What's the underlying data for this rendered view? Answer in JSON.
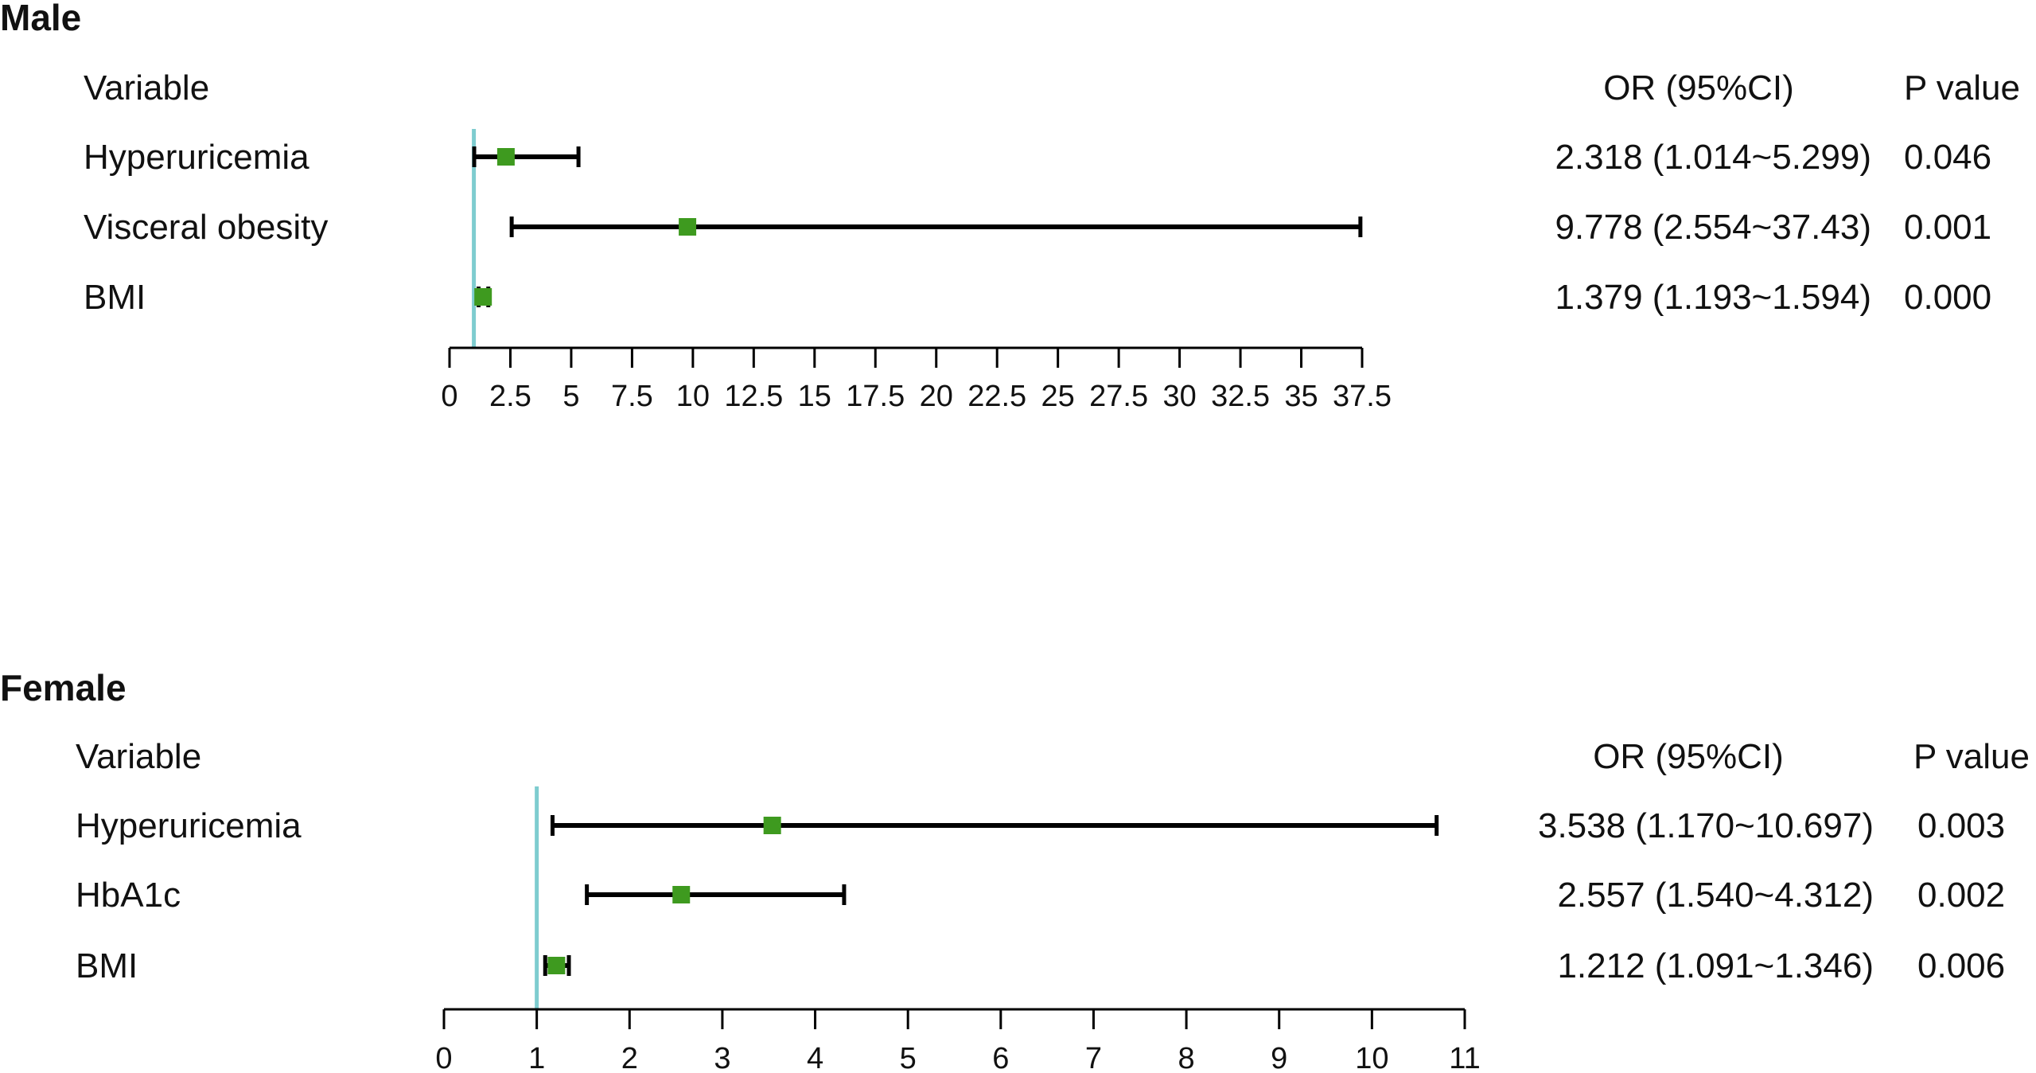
{
  "chart_data": [
    {
      "type": "forest",
      "title": "Male",
      "headers": {
        "variable": "Variable",
        "or": "OR (95%CI)",
        "p": "P value"
      },
      "reference_line": 1,
      "xlim": [
        0,
        37.5
      ],
      "ticks": [
        0,
        2.5,
        5,
        7.5,
        10,
        12.5,
        15,
        17.5,
        20,
        22.5,
        25,
        27.5,
        30,
        32.5,
        35,
        37.5
      ],
      "tick_labels": [
        "0",
        "2.5",
        "5",
        "7.5",
        "10",
        "12.5",
        "15",
        "17.5",
        "20",
        "22.5",
        "25",
        "27.5",
        "30",
        "32.5",
        "35",
        "37.5"
      ],
      "rows": [
        {
          "variable": "Hyperuricemia",
          "or": 2.318,
          "lower": 1.014,
          "upper": 5.299,
          "or_text": "2.318 (1.014~5.299)",
          "p": "0.046"
        },
        {
          "variable": "Visceral obesity",
          "or": 9.778,
          "lower": 2.554,
          "upper": 37.43,
          "or_text": "9.778 (2.554~37.43)",
          "p": "0.001"
        },
        {
          "variable": "BMI",
          "or": 1.379,
          "lower": 1.193,
          "upper": 1.594,
          "or_text": "1.379 (1.193~1.594)",
          "p": "0.000"
        }
      ]
    },
    {
      "type": "forest",
      "title": "Female",
      "headers": {
        "variable": "Variable",
        "or": "OR (95%CI)",
        "p": "P value"
      },
      "reference_line": 1,
      "xlim": [
        0,
        11
      ],
      "ticks": [
        0,
        1,
        2,
        3,
        4,
        5,
        6,
        7,
        8,
        9,
        10,
        11
      ],
      "tick_labels": [
        "0",
        "1",
        "2",
        "3",
        "4",
        "5",
        "6",
        "7",
        "8",
        "9",
        "10",
        "11"
      ],
      "rows": [
        {
          "variable": "Hyperuricemia",
          "or": 3.538,
          "lower": 1.17,
          "upper": 10.697,
          "or_text": "3.538 (1.170~10.697)",
          "p": "0.003"
        },
        {
          "variable": "HbA1c",
          "or": 2.557,
          "lower": 1.54,
          "upper": 4.312,
          "or_text": "2.557 (1.540~4.312)",
          "p": "0.002"
        },
        {
          "variable": "BMI",
          "or": 1.212,
          "lower": 1.091,
          "upper": 1.346,
          "or_text": "1.212 (1.091~1.346)",
          "p": "0.006"
        }
      ]
    }
  ],
  "colors": {
    "reference_line": "#7ecccf",
    "point": "#3e9a1f",
    "ci_line": "#000000",
    "axis": "#000000"
  }
}
